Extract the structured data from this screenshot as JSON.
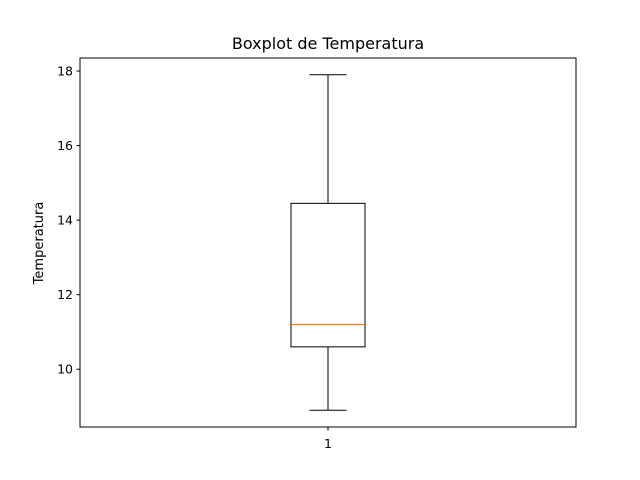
{
  "chart_data": {
    "type": "boxplot",
    "title": "Boxplot de Temperatura",
    "xlabel": "",
    "ylabel": "Temperatura",
    "categories": [
      "1"
    ],
    "boxes": [
      {
        "category": "1",
        "whisker_low": 8.9,
        "q1": 10.6,
        "median": 11.2,
        "q3": 14.45,
        "whisker_high": 17.9
      }
    ],
    "ylim": [
      8.45,
      18.35
    ],
    "yticks": [
      10,
      12,
      14,
      16,
      18
    ],
    "grid": false,
    "colors": {
      "box": "#000000",
      "median": "#ff7f0e",
      "axes": "#000000"
    }
  }
}
